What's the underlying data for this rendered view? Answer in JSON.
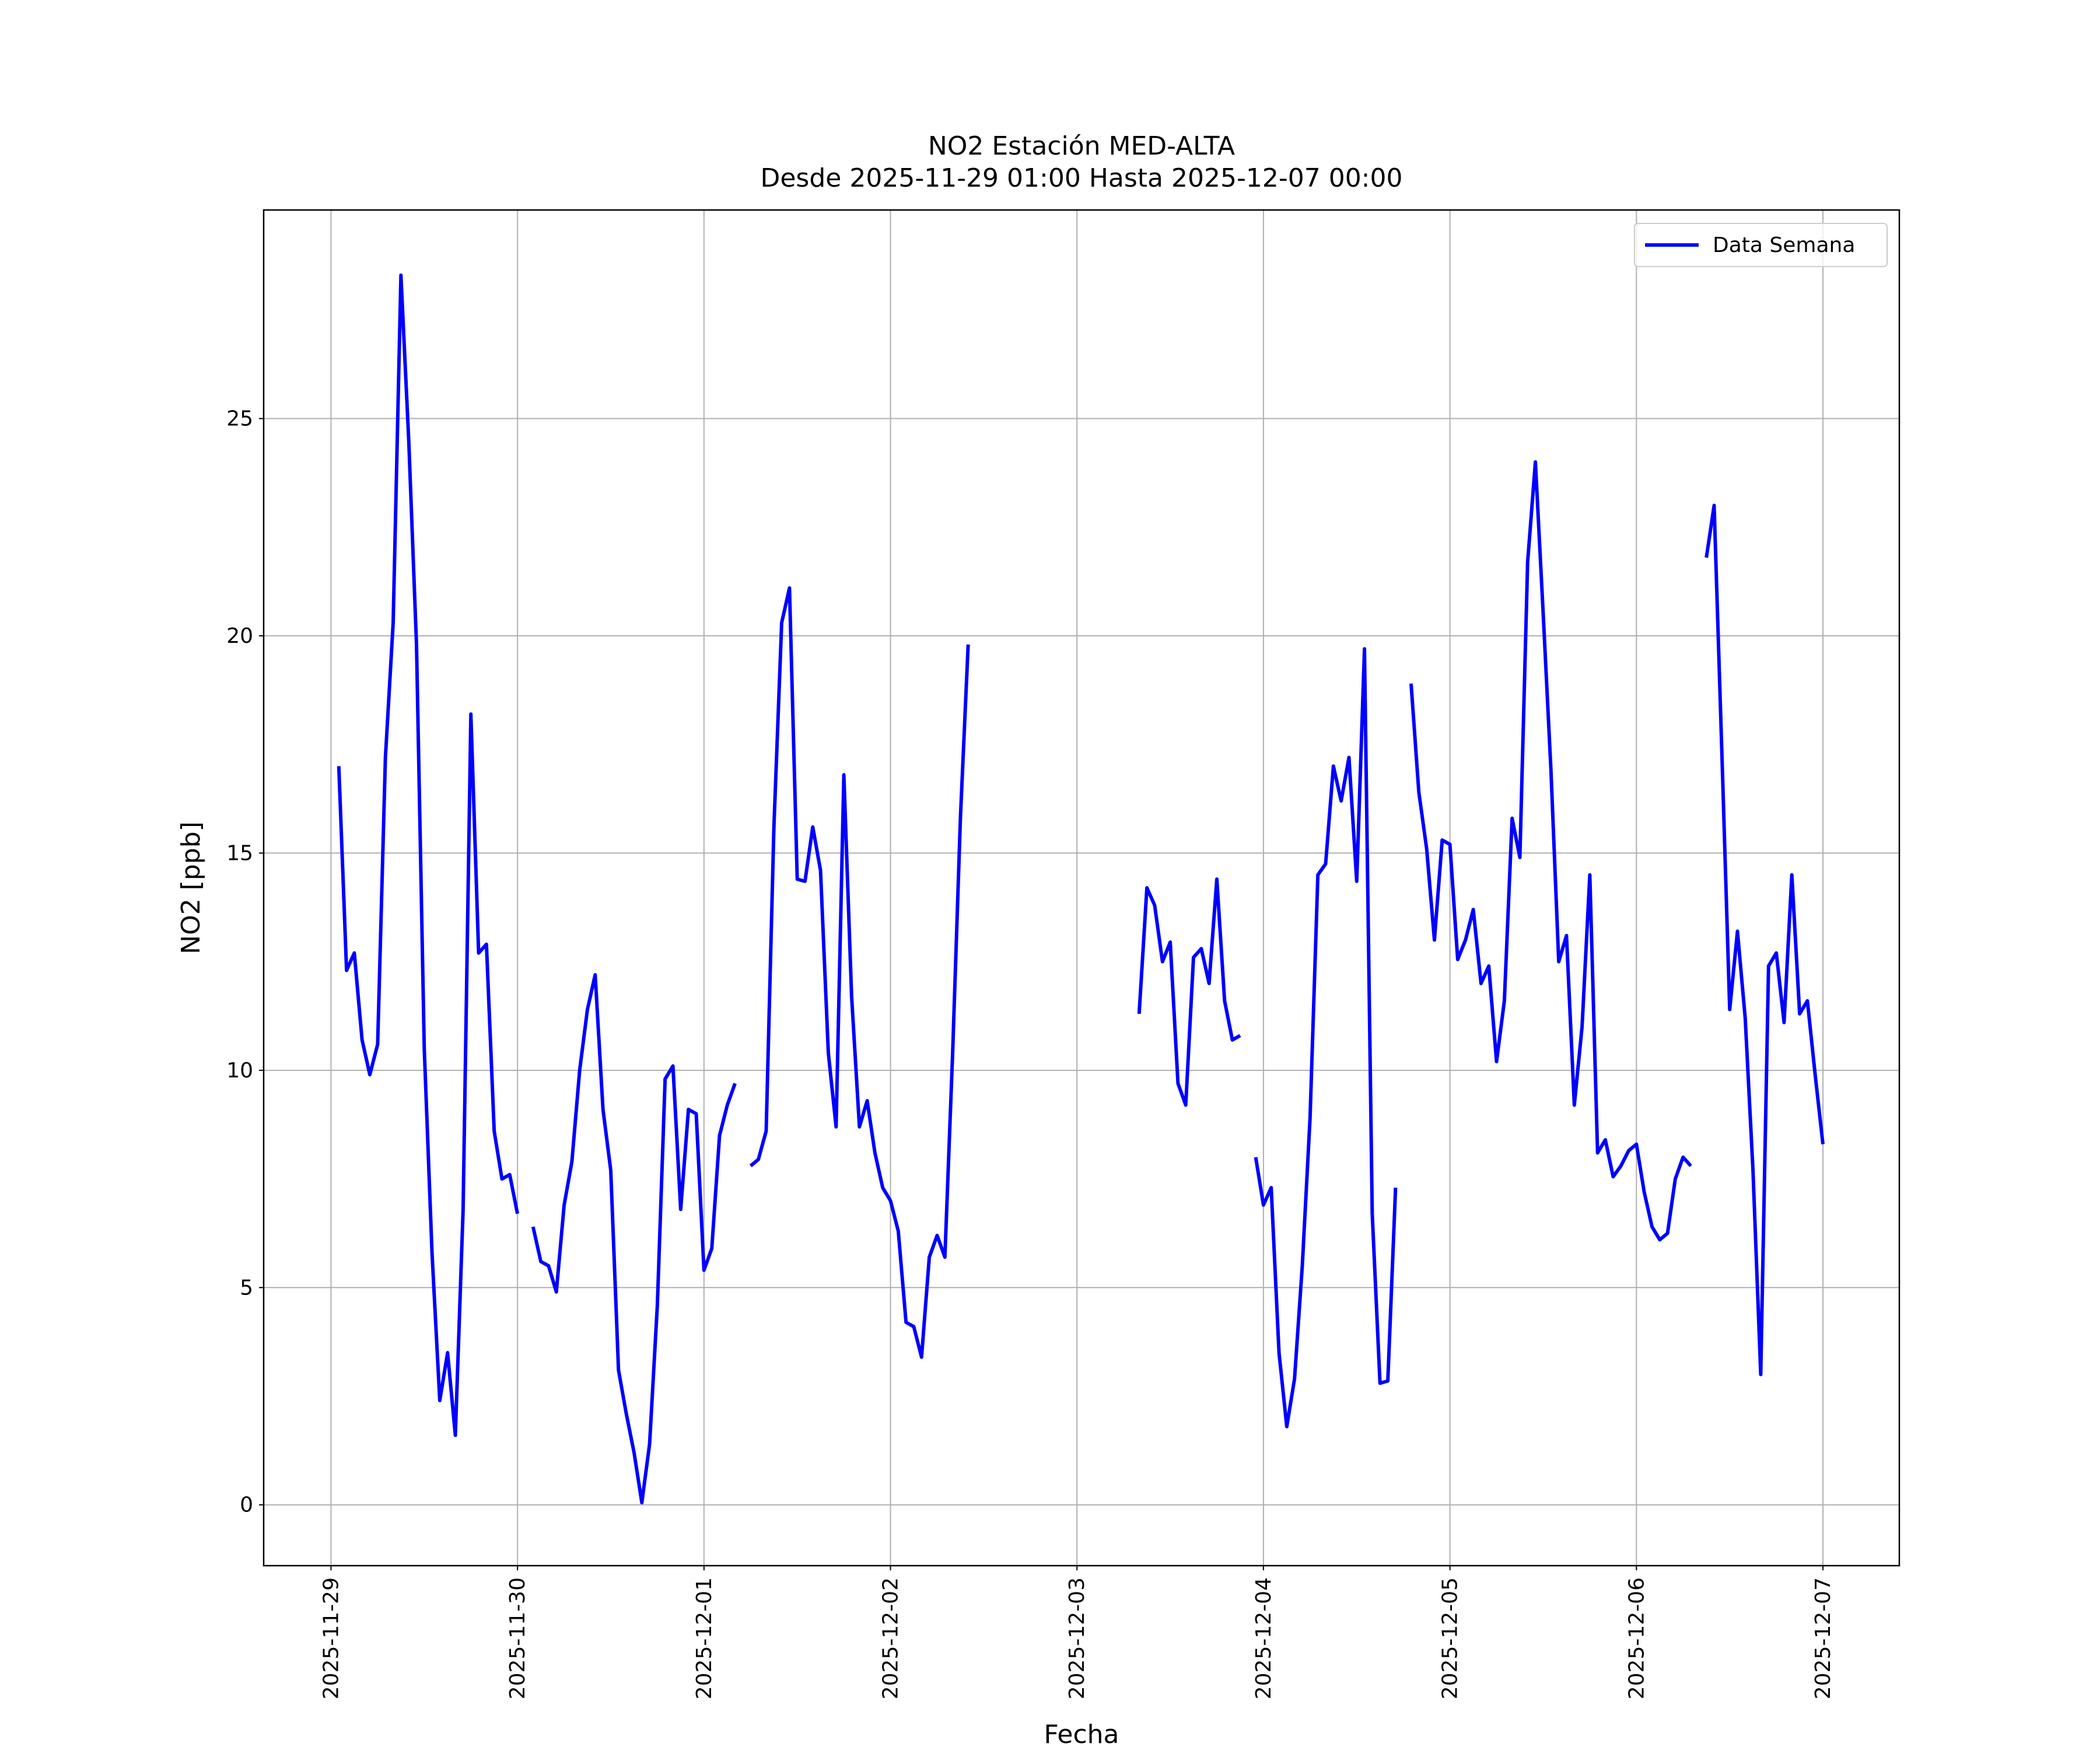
{
  "chart_data": {
    "type": "line",
    "title": "NO2 Estación MED-ALTA",
    "subtitle": "Desde 2025-11-29 01:00 Hasta 2025-12-07 00:00",
    "x_label": "Fecha",
    "y_label": "NO2 [ppb]",
    "x": [
      "2025-11-29 01:00",
      "2025-11-29 02:00",
      "2025-11-29 03:00",
      "2025-11-29 04:00",
      "2025-11-29 05:00",
      "2025-11-29 06:00",
      "2025-11-29 07:00",
      "2025-11-29 08:00",
      "2025-11-29 09:00",
      "2025-11-29 10:00",
      "2025-11-29 11:00",
      "2025-11-29 12:00",
      "2025-11-29 13:00",
      "2025-11-29 14:00",
      "2025-11-29 15:00",
      "2025-11-29 16:00",
      "2025-11-29 17:00",
      "2025-11-29 18:00",
      "2025-11-29 19:00",
      "2025-11-29 20:00",
      "2025-11-29 21:00",
      "2025-11-29 22:00",
      "2025-11-29 23:00",
      "2025-11-30 00:00",
      "2025-11-30 01:00",
      "2025-11-30 02:00",
      "2025-11-30 03:00",
      "2025-11-30 04:00",
      "2025-11-30 05:00",
      "2025-11-30 06:00",
      "2025-11-30 07:00",
      "2025-11-30 08:00",
      "2025-11-30 09:00",
      "2025-11-30 10:00",
      "2025-11-30 11:00",
      "2025-11-30 12:00",
      "2025-11-30 13:00",
      "2025-11-30 14:00",
      "2025-11-30 15:00",
      "2025-11-30 16:00",
      "2025-11-30 17:00",
      "2025-11-30 18:00",
      "2025-11-30 19:00",
      "2025-11-30 20:00",
      "2025-11-30 21:00",
      "2025-11-30 22:00",
      "2025-11-30 23:00",
      "2025-12-01 00:00",
      "2025-12-01 01:00",
      "2025-12-01 02:00",
      "2025-12-01 03:00",
      "2025-12-01 04:00",
      "2025-12-01 05:00",
      "2025-12-01 06:00",
      "2025-12-01 07:00",
      "2025-12-01 08:00",
      "2025-12-01 09:00",
      "2025-12-01 10:00",
      "2025-12-01 11:00",
      "2025-12-01 12:00",
      "2025-12-01 13:00",
      "2025-12-01 14:00",
      "2025-12-01 15:00",
      "2025-12-01 16:00",
      "2025-12-01 17:00",
      "2025-12-01 18:00",
      "2025-12-01 19:00",
      "2025-12-01 20:00",
      "2025-12-01 21:00",
      "2025-12-01 22:00",
      "2025-12-01 23:00",
      "2025-12-02 00:00",
      "2025-12-02 01:00",
      "2025-12-02 02:00",
      "2025-12-02 03:00",
      "2025-12-02 04:00",
      "2025-12-02 05:00",
      "2025-12-02 06:00",
      "2025-12-02 07:00",
      "2025-12-02 08:00",
      "2025-12-02 09:00",
      "2025-12-02 10:00",
      "2025-12-02 11:00",
      "2025-12-02 12:00",
      "2025-12-02 13:00",
      "2025-12-02 14:00",
      "2025-12-02 15:00",
      "2025-12-02 16:00",
      "2025-12-02 17:00",
      "2025-12-02 18:00",
      "2025-12-02 19:00",
      "2025-12-02 20:00",
      "2025-12-02 21:00",
      "2025-12-02 22:00",
      "2025-12-02 23:00",
      "2025-12-03 00:00",
      "2025-12-03 01:00",
      "2025-12-03 02:00",
      "2025-12-03 03:00",
      "2025-12-03 04:00",
      "2025-12-03 05:00",
      "2025-12-03 06:00",
      "2025-12-03 07:00",
      "2025-12-03 08:00",
      "2025-12-03 09:00",
      "2025-12-03 10:00",
      "2025-12-03 11:00",
      "2025-12-03 12:00",
      "2025-12-03 13:00",
      "2025-12-03 14:00",
      "2025-12-03 15:00",
      "2025-12-03 16:00",
      "2025-12-03 17:00",
      "2025-12-03 18:00",
      "2025-12-03 19:00",
      "2025-12-03 20:00",
      "2025-12-03 21:00",
      "2025-12-03 22:00",
      "2025-12-03 23:00",
      "2025-12-04 00:00",
      "2025-12-04 01:00",
      "2025-12-04 02:00",
      "2025-12-04 03:00",
      "2025-12-04 04:00",
      "2025-12-04 05:00",
      "2025-12-04 06:00",
      "2025-12-04 07:00",
      "2025-12-04 08:00",
      "2025-12-04 09:00",
      "2025-12-04 10:00",
      "2025-12-04 11:00",
      "2025-12-04 12:00",
      "2025-12-04 13:00",
      "2025-12-04 14:00",
      "2025-12-04 15:00",
      "2025-12-04 16:00",
      "2025-12-04 17:00",
      "2025-12-04 18:00",
      "2025-12-04 19:00",
      "2025-12-04 20:00",
      "2025-12-04 21:00",
      "2025-12-04 22:00",
      "2025-12-04 23:00",
      "2025-12-05 00:00",
      "2025-12-05 01:00",
      "2025-12-05 02:00",
      "2025-12-05 03:00",
      "2025-12-05 04:00",
      "2025-12-05 05:00",
      "2025-12-05 06:00",
      "2025-12-05 07:00",
      "2025-12-05 08:00",
      "2025-12-05 09:00",
      "2025-12-05 10:00",
      "2025-12-05 11:00",
      "2025-12-05 12:00",
      "2025-12-05 13:00",
      "2025-12-05 14:00",
      "2025-12-05 15:00",
      "2025-12-05 16:00",
      "2025-12-05 17:00",
      "2025-12-05 18:00",
      "2025-12-05 19:00",
      "2025-12-05 20:00",
      "2025-12-05 21:00",
      "2025-12-05 22:00",
      "2025-12-05 23:00",
      "2025-12-06 00:00",
      "2025-12-06 01:00",
      "2025-12-06 02:00",
      "2025-12-06 03:00",
      "2025-12-06 04:00",
      "2025-12-06 05:00",
      "2025-12-06 06:00",
      "2025-12-06 07:00",
      "2025-12-06 08:00",
      "2025-12-06 09:00",
      "2025-12-06 10:00",
      "2025-12-06 11:00",
      "2025-12-06 12:00",
      "2025-12-06 13:00",
      "2025-12-06 14:00",
      "2025-12-06 15:00",
      "2025-12-06 16:00",
      "2025-12-06 17:00",
      "2025-12-06 18:00",
      "2025-12-06 19:00",
      "2025-12-06 20:00",
      "2025-12-06 21:00",
      "2025-12-06 22:00",
      "2025-12-06 23:00",
      "2025-12-07 00:00"
    ],
    "series": [
      {
        "name": "Data Semana",
        "color": "#0000ff",
        "values": [
          17.0,
          12.3,
          12.7,
          10.7,
          9.9,
          10.6,
          17.2,
          20.3,
          28.3,
          24.5,
          19.8,
          10.5,
          5.8,
          2.4,
          3.5,
          1.6,
          6.8,
          18.2,
          12.7,
          12.9,
          8.6,
          7.5,
          7.6,
          6.7,
          null,
          6.4,
          5.6,
          5.5,
          4.9,
          6.9,
          7.9,
          10.0,
          11.4,
          12.2,
          9.1,
          7.7,
          3.1,
          2.1,
          1.2,
          0.05,
          1.4,
          4.6,
          9.8,
          10.1,
          6.8,
          9.1,
          9.0,
          5.4,
          5.9,
          8.5,
          9.2,
          9.7,
          null,
          7.8,
          7.95,
          8.6,
          15.6,
          20.3,
          21.1,
          14.4,
          14.35,
          15.6,
          14.6,
          10.4,
          8.7,
          16.8,
          11.7,
          8.7,
          9.3,
          8.1,
          7.3,
          7.0,
          6.3,
          4.2,
          4.1,
          3.4,
          5.7,
          6.2,
          5.7,
          10.4,
          15.8,
          19.8,
          null,
          null,
          null,
          null,
          null,
          null,
          null,
          null,
          null,
          null,
          null,
          null,
          null,
          null,
          null,
          null,
          null,
          null,
          null,
          null,
          null,
          11.3,
          14.2,
          13.8,
          12.5,
          12.95,
          9.7,
          9.2,
          12.6,
          12.8,
          12.0,
          14.4,
          11.6,
          10.7,
          10.8,
          null,
          8.0,
          6.9,
          7.3,
          3.5,
          1.8,
          2.9,
          5.5,
          8.9,
          14.5,
          14.75,
          17.0,
          16.2,
          17.2,
          14.35,
          19.7,
          6.7,
          2.8,
          2.85,
          7.3,
          null,
          18.9,
          16.4,
          15.1,
          13.0,
          15.3,
          15.2,
          12.55,
          13.0,
          13.7,
          12.0,
          12.4,
          10.2,
          11.6,
          15.8,
          14.9,
          21.7,
          24.0,
          20.5,
          16.9,
          12.5,
          13.1,
          9.2,
          11.0,
          14.5,
          8.1,
          8.4,
          7.55,
          7.8,
          8.15,
          8.3,
          7.2,
          6.4,
          6.1,
          6.25,
          7.5,
          8.0,
          7.8,
          null,
          21.8,
          23.0,
          17.3,
          11.4,
          13.2,
          11.2,
          7.7,
          3.0,
          12.4,
          12.7,
          11.1,
          14.5,
          11.3,
          11.6,
          9.9,
          8.3
        ]
      }
    ],
    "xlim": [
      "2025-11-28 15:20",
      "2025-12-07 09:50"
    ],
    "xticks": [
      "2025-11-29",
      "2025-11-30",
      "2025-12-01",
      "2025-12-02",
      "2025-12-03",
      "2025-12-04",
      "2025-12-05",
      "2025-12-06",
      "2025-12-07"
    ],
    "ylim": [
      -1.4,
      29.8
    ],
    "yticks": [
      0,
      5,
      10,
      15,
      20,
      25
    ],
    "grid": true,
    "legend": "upper right"
  }
}
